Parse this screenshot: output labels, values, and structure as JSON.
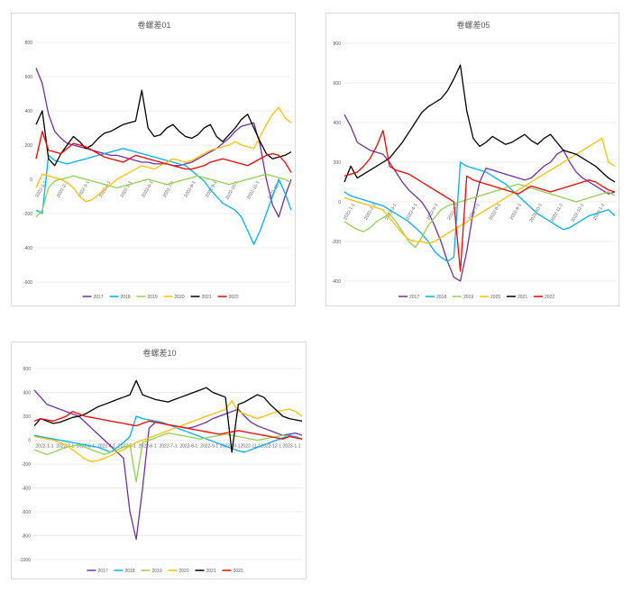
{
  "chart_data": [
    {
      "type": "line",
      "title": "卷螺差01",
      "ylim": [
        -600,
        800
      ],
      "yticks": [
        -600,
        -400,
        -200,
        0,
        200,
        400,
        600,
        800
      ],
      "xticks": [
        "2022-1-1",
        "2022-2-1",
        "2022-3-1",
        "2022-4-1",
        "2022-5-1",
        "2022-6-1",
        "2022-7-1",
        "2022-8-1",
        "2022-9-1",
        "2022-10-1",
        "2022-11-1",
        "2022-12-1"
      ],
      "legend": "bottom",
      "grid": true,
      "series": [
        {
          "name": "2017",
          "color": "#7030a0",
          "values": [
            650,
            560,
            380,
            280,
            240,
            210,
            200,
            190,
            180,
            170,
            160,
            150,
            140,
            140,
            130,
            120,
            110,
            100,
            100,
            90,
            90,
            90,
            80,
            80,
            90,
            100,
            120,
            140,
            160,
            180,
            210,
            240,
            280,
            310,
            320,
            330,
            200,
            0,
            -150,
            -220,
            -100,
            0
          ]
        },
        {
          "name": "2018",
          "color": "#00b0f0",
          "values": [
            -180,
            -200,
            140,
            110,
            100,
            90,
            100,
            110,
            120,
            130,
            140,
            150,
            160,
            170,
            180,
            170,
            160,
            150,
            140,
            130,
            120,
            110,
            100,
            90,
            80,
            50,
            20,
            -10,
            -60,
            -100,
            -140,
            -160,
            -180,
            -220,
            -300,
            -380,
            -300,
            -200,
            -100,
            0,
            -80,
            -180
          ]
        },
        {
          "name": "2019",
          "color": "#92d050",
          "values": [
            -220,
            -180,
            -50,
            -10,
            0,
            10,
            20,
            10,
            0,
            -10,
            -20,
            -30,
            -40,
            -50,
            -40,
            -30,
            -20,
            -10,
            0,
            -10,
            -20,
            -30,
            -20,
            -10,
            0,
            10,
            20,
            10,
            0,
            -10,
            -20,
            -30,
            -20,
            -10,
            0,
            10,
            20,
            30,
            20,
            10,
            0,
            -20
          ]
        },
        {
          "name": "2020",
          "color": "#ffc000",
          "values": [
            -50,
            30,
            20,
            10,
            0,
            -20,
            -50,
            -100,
            -130,
            -120,
            -90,
            -60,
            -30,
            0,
            20,
            40,
            60,
            80,
            70,
            60,
            80,
            100,
            120,
            110,
            100,
            110,
            130,
            150,
            170,
            180,
            190,
            200,
            220,
            200,
            190,
            180,
            250,
            320,
            380,
            420,
            360,
            330
          ]
        },
        {
          "name": "2021",
          "color": "#000000",
          "values": [
            320,
            400,
            120,
            80,
            150,
            200,
            250,
            220,
            180,
            200,
            240,
            270,
            280,
            300,
            320,
            330,
            340,
            520,
            300,
            250,
            260,
            300,
            320,
            280,
            250,
            240,
            260,
            300,
            320,
            250,
            220,
            260,
            300,
            350,
            380,
            300,
            220,
            150,
            120,
            130,
            140,
            160
          ]
        },
        {
          "name": "2022",
          "color": "#ff0000",
          "values": [
            120,
            280,
            170,
            160,
            150,
            180,
            210,
            200,
            190,
            170,
            150,
            130,
            120,
            110,
            100,
            120,
            140,
            130,
            120,
            110,
            100,
            90,
            80,
            70,
            60,
            60,
            70,
            80,
            100,
            110,
            120,
            110,
            100,
            90,
            80,
            100,
            120,
            140,
            150,
            140,
            100,
            40
          ]
        }
      ]
    },
    {
      "type": "line",
      "title": "卷螺差05",
      "ylim": [
        -400,
        800
      ],
      "yticks": [
        -400,
        -200,
        0,
        200,
        400,
        600,
        800
      ],
      "xticks": [
        "2022-1-1",
        "2022-2-1",
        "2022-3-1",
        "2022-4-1",
        "2022-5-1",
        "2022-6-1",
        "2022-7-1",
        "2022-8-1",
        "2022-9-1",
        "2022-10-1",
        "2022-11-1",
        "2022-12-1",
        "2023-1-1"
      ],
      "legend": "bottom",
      "grid": true,
      "series": [
        {
          "name": "2017",
          "color": "#7030a0",
          "values": [
            440,
            380,
            300,
            280,
            260,
            250,
            240,
            200,
            150,
            100,
            60,
            30,
            0,
            -50,
            -120,
            -200,
            -300,
            -380,
            -400,
            -250,
            -50,
            100,
            170,
            160,
            150,
            140,
            130,
            120,
            110,
            120,
            150,
            180,
            200,
            240,
            260,
            200,
            150,
            120,
            100,
            80,
            60,
            40,
            50
          ]
        },
        {
          "name": "2018",
          "color": "#00b0f0",
          "values": [
            50,
            30,
            20,
            10,
            0,
            -10,
            -20,
            -40,
            -60,
            -80,
            -100,
            -130,
            -160,
            -200,
            -250,
            -280,
            -300,
            -280,
            200,
            180,
            170,
            160,
            150,
            130,
            110,
            90,
            60,
            30,
            0,
            -30,
            -60,
            -80,
            -100,
            -120,
            -140,
            -130,
            -110,
            -90,
            -70,
            -60,
            -50,
            -40,
            -70
          ]
        },
        {
          "name": "2019",
          "color": "#92d050",
          "values": [
            -100,
            -120,
            -140,
            -150,
            -130,
            -100,
            -80,
            -60,
            -100,
            -150,
            -200,
            -230,
            -180,
            -120,
            -80,
            -40,
            -20,
            -10,
            0,
            10,
            20,
            30,
            40,
            50,
            60,
            70,
            80,
            90,
            80,
            70,
            60,
            50,
            40,
            30,
            20,
            10,
            0,
            10,
            20,
            30,
            40,
            50,
            30
          ]
        },
        {
          "name": "2020",
          "color": "#ffc000",
          "values": [
            20,
            10,
            0,
            -10,
            -20,
            -30,
            -40,
            -80,
            -120,
            -160,
            -190,
            -200,
            -200,
            -210,
            -200,
            -180,
            -160,
            -140,
            -120,
            -100,
            -80,
            -60,
            -40,
            -20,
            0,
            20,
            40,
            60,
            80,
            100,
            120,
            140,
            160,
            180,
            200,
            220,
            240,
            260,
            280,
            300,
            320,
            200,
            180
          ]
        },
        {
          "name": "2021",
          "color": "#000000",
          "values": [
            100,
            180,
            120,
            140,
            160,
            180,
            200,
            220,
            260,
            300,
            350,
            400,
            450,
            480,
            500,
            520,
            560,
            620,
            690,
            460,
            320,
            280,
            300,
            330,
            310,
            290,
            300,
            320,
            340,
            310,
            290,
            320,
            340,
            300,
            260,
            250,
            240,
            220,
            200,
            180,
            150,
            120,
            100
          ]
        },
        {
          "name": "2022",
          "color": "#ff0000",
          "values": [
            130,
            140,
            150,
            180,
            220,
            280,
            360,
            180,
            160,
            150,
            140,
            120,
            100,
            80,
            60,
            40,
            20,
            0,
            -350,
            130,
            110,
            100,
            90,
            80,
            70,
            60,
            50,
            40,
            60,
            80,
            70,
            60,
            50,
            60,
            70,
            80,
            90,
            100,
            110,
            100,
            80,
            60,
            50
          ]
        }
      ]
    },
    {
      "type": "line",
      "title": "卷螺差10",
      "ylim": [
        -1000,
        600
      ],
      "yticks": [
        -1000,
        -800,
        -600,
        -400,
        -200,
        0,
        200,
        400,
        600
      ],
      "xticks": [
        "2022-1-1",
        "2022-2-1",
        "2022-3-1",
        "2022-4-1",
        "2022-5-1",
        "2022-6-1",
        "2022-7-1",
        "2022-8-1",
        "2022-9-1",
        "2022-10-1",
        "2022-11-1",
        "2022-12-1",
        "2023-1-1"
      ],
      "legend": "bottom",
      "grid": true,
      "series": [
        {
          "name": "2017",
          "color": "#7030a0",
          "values": [
            420,
            360,
            300,
            280,
            260,
            240,
            220,
            200,
            150,
            100,
            50,
            0,
            -50,
            -100,
            -150,
            -600,
            -830,
            -400,
            100,
            150,
            140,
            130,
            120,
            110,
            100,
            110,
            130,
            150,
            180,
            200,
            220,
            240,
            260,
            200,
            150,
            120,
            100,
            80,
            60,
            40,
            50,
            60,
            40
          ]
        },
        {
          "name": "2018",
          "color": "#00b0f0",
          "values": [
            40,
            30,
            20,
            10,
            0,
            -10,
            -20,
            -30,
            -40,
            -50,
            -60,
            -80,
            -100,
            -60,
            -20,
            30,
            200,
            180,
            170,
            160,
            150,
            130,
            110,
            90,
            70,
            50,
            30,
            10,
            -10,
            -30,
            -50,
            -70,
            -90,
            -100,
            -80,
            -60,
            -40,
            -20,
            0,
            20,
            40,
            30,
            10
          ]
        },
        {
          "name": "2019",
          "color": "#92d050",
          "values": [
            -80,
            -100,
            -120,
            -100,
            -80,
            -60,
            -50,
            -40,
            -60,
            -80,
            -100,
            -120,
            -100,
            -80,
            -60,
            -40,
            -350,
            -20,
            0,
            20,
            40,
            60,
            50,
            40,
            30,
            20,
            10,
            20,
            30,
            40,
            50,
            40,
            30,
            20,
            10,
            0,
            10,
            20,
            30,
            40,
            30,
            20,
            10
          ]
        },
        {
          "name": "2020",
          "color": "#ffc000",
          "values": [
            30,
            20,
            10,
            0,
            -20,
            -40,
            -80,
            -120,
            -160,
            -180,
            -170,
            -150,
            -130,
            -100,
            -80,
            -50,
            -20,
            0,
            20,
            40,
            60,
            80,
            100,
            120,
            140,
            160,
            180,
            200,
            220,
            240,
            260,
            330,
            240,
            220,
            200,
            180,
            200,
            220,
            240,
            250,
            260,
            240,
            200
          ]
        },
        {
          "name": "2021",
          "color": "#000000",
          "values": [
            120,
            180,
            160,
            140,
            150,
            170,
            190,
            200,
            220,
            250,
            280,
            300,
            320,
            340,
            360,
            380,
            500,
            380,
            360,
            340,
            330,
            320,
            340,
            360,
            380,
            400,
            420,
            440,
            400,
            380,
            360,
            -100,
            300,
            320,
            350,
            380,
            360,
            300,
            250,
            200,
            180,
            170,
            160
          ]
        },
        {
          "name": "2022",
          "color": "#ff0000",
          "values": [
            160,
            180,
            170,
            160,
            180,
            200,
            240,
            220,
            200,
            190,
            180,
            170,
            160,
            150,
            140,
            130,
            120,
            140,
            160,
            150,
            140,
            130,
            120,
            110,
            100,
            90,
            80,
            70,
            60,
            50,
            60,
            70,
            80,
            70,
            60,
            50,
            40,
            30,
            20,
            10,
            30,
            20,
            10
          ]
        }
      ]
    }
  ]
}
